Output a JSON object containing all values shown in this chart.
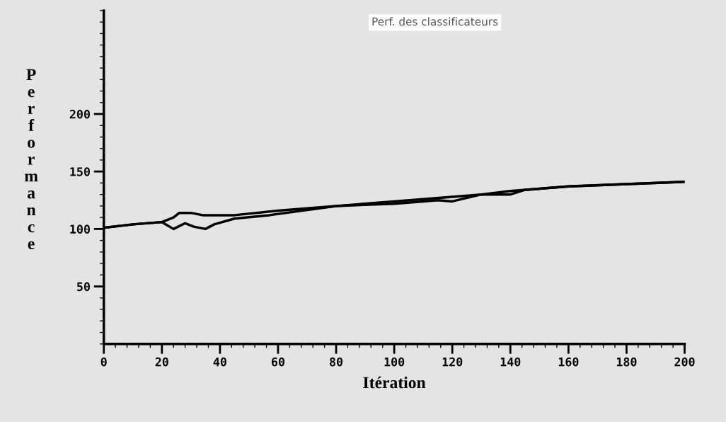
{
  "chart_data": {
    "type": "line",
    "title": "Perf. des classificateurs",
    "xlabel": "Itération",
    "ylabel": "Performance",
    "xlim": [
      0,
      200
    ],
    "ylim": [
      0,
      290
    ],
    "xticks": [
      0,
      20,
      40,
      60,
      80,
      100,
      120,
      140,
      160,
      180,
      200
    ],
    "yticks": [
      50,
      100,
      150,
      200
    ],
    "grid": false,
    "marker": "none",
    "line_style": "solid",
    "series": [
      {
        "color": "#000000",
        "x": [
          0,
          10,
          20,
          24,
          26,
          30,
          34,
          40,
          45,
          60,
          80,
          100,
          110,
          120,
          130,
          140,
          150,
          160,
          180,
          200
        ],
        "values": [
          101,
          104,
          106,
          110,
          114,
          114,
          112,
          112,
          112,
          116,
          120,
          124,
          126,
          128,
          130,
          133,
          135,
          137,
          139,
          141
        ]
      },
      {
        "color": "#000000",
        "x": [
          0,
          10,
          20,
          24,
          28,
          31,
          35,
          38,
          45,
          57,
          80,
          100,
          110,
          115,
          120,
          130,
          135,
          140,
          145,
          160,
          180,
          200
        ],
        "values": [
          101,
          104,
          106,
          100,
          105,
          102,
          100,
          104,
          109,
          112,
          120,
          122,
          124,
          125,
          124,
          130,
          130,
          130,
          134,
          137,
          139,
          141
        ]
      }
    ]
  }
}
